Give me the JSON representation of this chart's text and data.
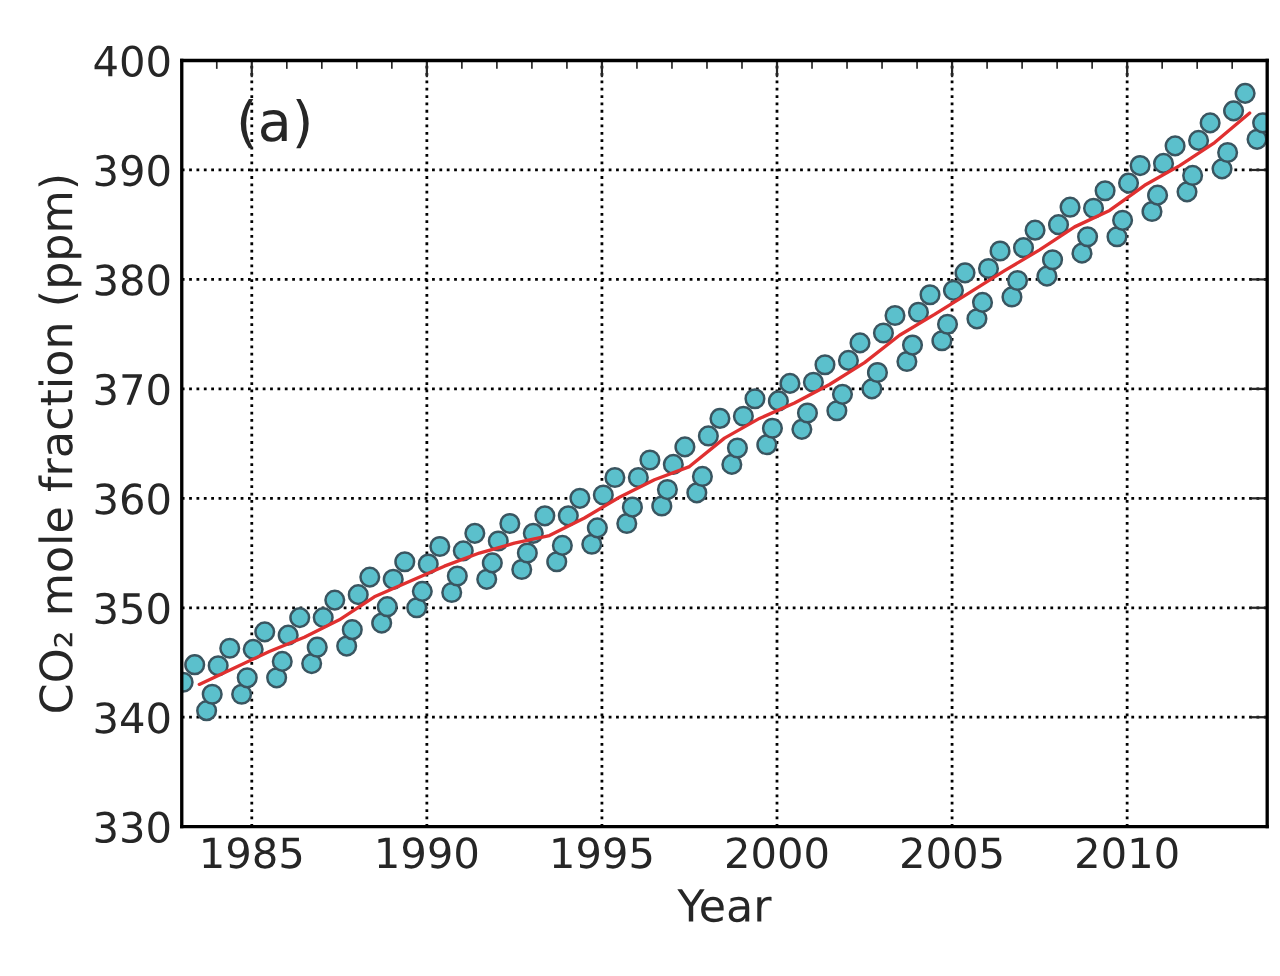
{
  "chart_data": {
    "type": "scatter",
    "xlabel": "Year",
    "ylabel": "CO₂ mole fraction (ppm)",
    "annotations": [
      "(a)"
    ],
    "xlim": [
      1983,
      2014
    ],
    "xticks": [
      1985,
      1990,
      1995,
      2000,
      2005,
      2010
    ],
    "ylim": [
      330,
      400
    ],
    "yticks": [
      330,
      340,
      350,
      360,
      370,
      380,
      390,
      400
    ],
    "grid": true,
    "series": [
      {
        "color": "#5bc0cc",
        "marker": "circle",
        "x": [
          1983.04,
          1983.37,
          1983.71,
          1983.87,
          1984.04,
          1984.37,
          1984.71,
          1984.87,
          1985.04,
          1985.37,
          1985.71,
          1985.87,
          1986.04,
          1986.37,
          1986.71,
          1986.87,
          1987.04,
          1987.37,
          1987.71,
          1987.87,
          1988.04,
          1988.37,
          1988.71,
          1988.87,
          1989.04,
          1989.37,
          1989.71,
          1989.87,
          1990.04,
          1990.37,
          1990.71,
          1990.87,
          1991.04,
          1991.37,
          1991.71,
          1991.87,
          1992.04,
          1992.37,
          1992.71,
          1992.87,
          1993.04,
          1993.37,
          1993.71,
          1993.87,
          1994.04,
          1994.37,
          1994.71,
          1994.87,
          1995.04,
          1995.37,
          1995.71,
          1995.87,
          1996.04,
          1996.37,
          1996.71,
          1996.87,
          1997.04,
          1997.37,
          1997.71,
          1997.87,
          1998.04,
          1998.37,
          1998.71,
          1998.87,
          1999.04,
          1999.37,
          1999.71,
          1999.87,
          2000.04,
          2000.37,
          2000.71,
          2000.87,
          2001.04,
          2001.37,
          2001.71,
          2001.87,
          2002.04,
          2002.37,
          2002.71,
          2002.87,
          2003.04,
          2003.37,
          2003.71,
          2003.87,
          2004.04,
          2004.37,
          2004.71,
          2004.87,
          2005.04,
          2005.37,
          2005.71,
          2005.87,
          2006.04,
          2006.37,
          2006.71,
          2006.87,
          2007.04,
          2007.37,
          2007.71,
          2007.87,
          2008.04,
          2008.37,
          2008.71,
          2008.87,
          2009.04,
          2009.37,
          2009.71,
          2009.87,
          2010.04,
          2010.37,
          2010.71,
          2010.87,
          2011.04,
          2011.37,
          2011.71,
          2011.87,
          2012.04,
          2012.37,
          2012.71,
          2012.87,
          2013.04,
          2013.37,
          2013.71,
          2013.87
        ],
        "values": [
          343.2,
          344.8,
          340.6,
          342.1,
          344.7,
          346.3,
          342.1,
          343.6,
          346.2,
          347.8,
          343.6,
          345.1,
          347.5,
          349.1,
          344.9,
          346.4,
          349.1,
          350.7,
          346.5,
          348.0,
          351.2,
          352.8,
          348.6,
          350.1,
          352.6,
          354.2,
          350.0,
          351.5,
          354.0,
          355.6,
          351.4,
          352.9,
          355.2,
          356.8,
          352.6,
          354.1,
          356.1,
          357.7,
          353.5,
          355.0,
          356.8,
          358.4,
          354.2,
          355.7,
          358.4,
          360.0,
          355.8,
          357.3,
          360.3,
          361.9,
          357.7,
          359.2,
          361.9,
          363.5,
          359.3,
          360.8,
          363.1,
          364.7,
          360.5,
          362.0,
          365.7,
          367.3,
          363.1,
          364.6,
          367.5,
          369.1,
          364.9,
          366.4,
          368.9,
          370.5,
          366.3,
          367.8,
          370.6,
          372.2,
          368.0,
          369.5,
          372.6,
          374.2,
          370.0,
          371.5,
          375.1,
          376.7,
          372.5,
          374.0,
          377.0,
          378.6,
          374.4,
          375.9,
          379.0,
          380.6,
          376.4,
          377.9,
          381.0,
          382.6,
          378.4,
          379.9,
          382.9,
          384.5,
          380.3,
          381.8,
          385.0,
          386.6,
          382.4,
          383.9,
          386.5,
          388.1,
          383.9,
          385.4,
          388.8,
          390.4,
          386.2,
          387.7,
          390.6,
          392.2,
          388.0,
          389.5,
          392.7,
          394.3,
          390.1,
          391.6,
          395.4,
          397.0,
          392.8,
          394.3
        ]
      },
      {
        "type": "line",
        "color": "#e03030",
        "marker": "none",
        "line_style": "solid",
        "x": [
          1983.5,
          1984.5,
          1985.5,
          1986.5,
          1987.5,
          1988.5,
          1989.5,
          1990.5,
          1991.5,
          1992.5,
          1993.5,
          1994.5,
          1995.5,
          1996.5,
          1997.5,
          1998.5,
          1999.5,
          2000.5,
          2001.5,
          2002.5,
          2003.5,
          2004.5,
          2005.5,
          2006.5,
          2007.5,
          2008.5,
          2009.5,
          2010.5,
          2011.5,
          2012.5,
          2013.5
        ],
        "values": [
          343.0,
          344.5,
          346.0,
          347.3,
          348.9,
          351.0,
          352.4,
          353.8,
          355.0,
          355.9,
          356.6,
          358.2,
          360.1,
          361.7,
          362.9,
          365.5,
          367.3,
          368.7,
          370.4,
          372.4,
          374.9,
          376.8,
          378.8,
          380.8,
          382.7,
          384.8,
          386.3,
          388.6,
          390.4,
          392.5,
          395.2
        ]
      }
    ]
  }
}
